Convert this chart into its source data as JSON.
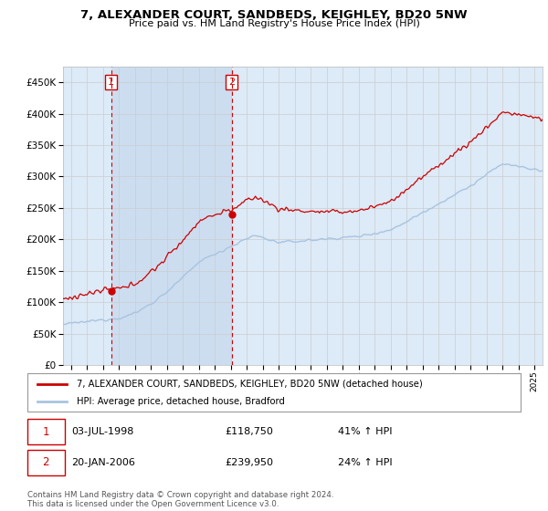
{
  "title1": "7, ALEXANDER COURT, SANDBEDS, KEIGHLEY, BD20 5NW",
  "title2": "Price paid vs. HM Land Registry's House Price Index (HPI)",
  "legend_line1": "7, ALEXANDER COURT, SANDBEDS, KEIGHLEY, BD20 5NW (detached house)",
  "legend_line2": "HPI: Average price, detached house, Bradford",
  "footnote": "Contains HM Land Registry data © Crown copyright and database right 2024.\nThis data is licensed under the Open Government Licence v3.0.",
  "sale1_date": "03-JUL-1998",
  "sale1_price": 118750,
  "sale1_label": "41% ↑ HPI",
  "sale1_x": 1998.5,
  "sale2_date": "20-JAN-2006",
  "sale2_price": 239950,
  "sale2_label": "24% ↑ HPI",
  "sale2_x": 2006.05,
  "hpi_color": "#a8c4e0",
  "price_color": "#cc0000",
  "shade_color": "#ccddf0",
  "grid_color": "#cccccc",
  "background_color": "#ddeaf7",
  "plot_bg": "#ffffff",
  "ylim": [
    0,
    475000
  ],
  "xlim_start": 1995.5,
  "xlim_end": 2025.5,
  "yticks": [
    0,
    50000,
    100000,
    150000,
    200000,
    250000,
    300000,
    350000,
    400000,
    450000
  ]
}
